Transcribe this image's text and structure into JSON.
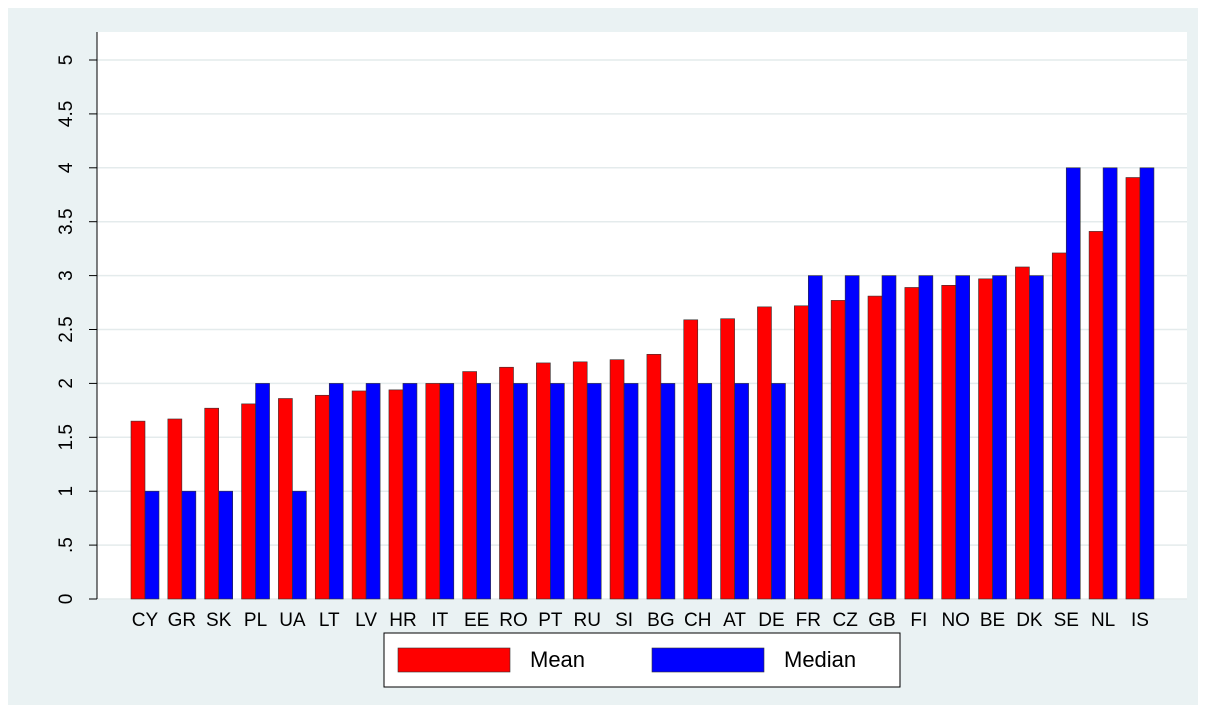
{
  "chart_data": {
    "type": "bar",
    "categories": [
      "CY",
      "GR",
      "SK",
      "PL",
      "UA",
      "LT",
      "LV",
      "HR",
      "IT",
      "EE",
      "RO",
      "PT",
      "RU",
      "SI",
      "BG",
      "CH",
      "AT",
      "DE",
      "FR",
      "CZ",
      "GB",
      "FI",
      "NO",
      "BE",
      "DK",
      "SE",
      "NL",
      "IS"
    ],
    "series": [
      {
        "name": "Mean",
        "color": "#ff0000",
        "values": [
          1.65,
          1.67,
          1.77,
          1.81,
          1.86,
          1.89,
          1.93,
          1.94,
          2.0,
          2.11,
          2.15,
          2.19,
          2.2,
          2.22,
          2.27,
          2.59,
          2.6,
          2.71,
          2.72,
          2.77,
          2.81,
          2.89,
          2.91,
          2.97,
          3.08,
          3.21,
          3.41,
          3.91
        ]
      },
      {
        "name": "Median",
        "color": "#0000ff",
        "values": [
          1,
          1,
          1,
          2,
          1,
          2,
          2,
          2,
          2,
          2,
          2,
          2,
          2,
          2,
          2,
          2,
          2,
          2,
          3,
          3,
          3,
          3,
          3,
          3,
          3,
          4,
          4,
          4
        ]
      }
    ],
    "ylim": [
      0,
      5
    ],
    "yticks": [
      0,
      {
        "value": 0.5,
        "label": ".5"
      },
      1,
      1.5,
      2,
      2.5,
      3,
      3.5,
      4,
      4.5,
      5
    ],
    "grid": true
  }
}
